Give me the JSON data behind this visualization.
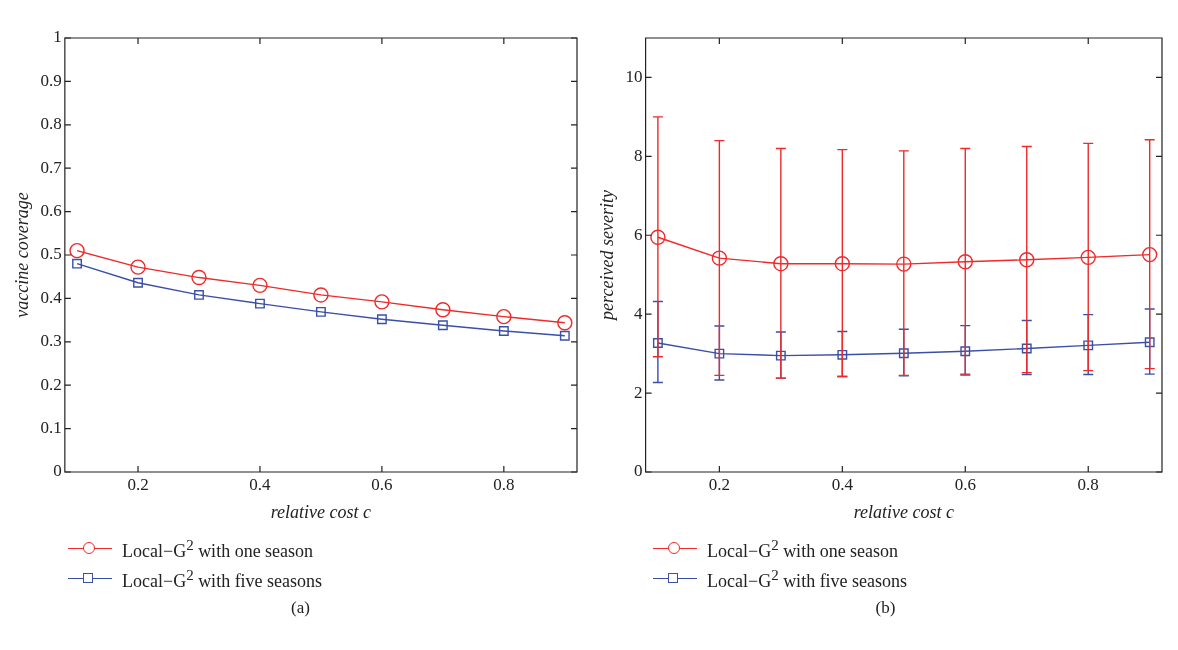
{
  "chart_data": [
    {
      "type": "line",
      "xlabel": "relative cost c",
      "ylabel": "vaccine coverage",
      "x": [
        0.1,
        0.2,
        0.3,
        0.4,
        0.5,
        0.6,
        0.7,
        0.8,
        0.9
      ],
      "xlim": [
        0.08,
        0.92
      ],
      "xticks": [
        0.2,
        0.4,
        0.6,
        0.8
      ],
      "ylim": [
        0,
        1
      ],
      "yticks": [
        0,
        0.1,
        0.2,
        0.3,
        0.4,
        0.5,
        0.6,
        0.7,
        0.8,
        0.9,
        1
      ],
      "grid": false,
      "legend": "bottom",
      "annotations": [
        "(a)"
      ],
      "series": [
        {
          "name": "Local−G$^{2}$ with one season",
          "color": "#ee2a2a",
          "marker": "circle",
          "values": [
            0.51,
            0.472,
            0.448,
            0.43,
            0.408,
            0.392,
            0.374,
            0.358,
            0.344
          ]
        },
        {
          "name": "Local−G$^{2}$ with five seasons",
          "color": "#3a4fa8",
          "marker": "square",
          "values": [
            0.48,
            0.436,
            0.408,
            0.388,
            0.369,
            0.352,
            0.338,
            0.325,
            0.314
          ]
        }
      ]
    },
    {
      "type": "line",
      "xlabel": "relative cost c",
      "ylabel": "perceived severity",
      "x": [
        0.1,
        0.2,
        0.3,
        0.4,
        0.5,
        0.6,
        0.7,
        0.8,
        0.9
      ],
      "xlim": [
        0.08,
        0.92
      ],
      "xticks": [
        0.2,
        0.4,
        0.6,
        0.8
      ],
      "ylim": [
        0,
        11
      ],
      "yticks": [
        0,
        2,
        4,
        6,
        8,
        10
      ],
      "grid": false,
      "legend": "bottom",
      "annotations": [
        "(b)"
      ],
      "series": [
        {
          "name": "Local−G$^{2}$ with one season",
          "color": "#ee2a2a",
          "marker": "circle",
          "values": [
            5.95,
            5.42,
            5.28,
            5.28,
            5.27,
            5.33,
            5.38,
            5.44,
            5.51
          ],
          "errors": [
            [
              2.92,
              9.0
            ],
            [
              2.45,
              8.4
            ],
            [
              2.38,
              8.2
            ],
            [
              2.42,
              8.17
            ],
            [
              2.45,
              8.14
            ],
            [
              2.48,
              8.2
            ],
            [
              2.52,
              8.25
            ],
            [
              2.57,
              8.33
            ],
            [
              2.62,
              8.42
            ]
          ]
        },
        {
          "name": "Local−G$^{2}$ with five seasons",
          "color": "#3a4fa8",
          "marker": "square",
          "values": [
            3.27,
            3.0,
            2.95,
            2.97,
            3.01,
            3.06,
            3.13,
            3.21,
            3.29
          ],
          "errors": [
            [
              2.27,
              4.32
            ],
            [
              2.33,
              3.7
            ],
            [
              2.38,
              3.55
            ],
            [
              2.42,
              3.56
            ],
            [
              2.44,
              3.62
            ],
            [
              2.46,
              3.71
            ],
            [
              2.47,
              3.84
            ],
            [
              2.47,
              3.99
            ],
            [
              2.48,
              4.13
            ]
          ]
        }
      ]
    }
  ]
}
